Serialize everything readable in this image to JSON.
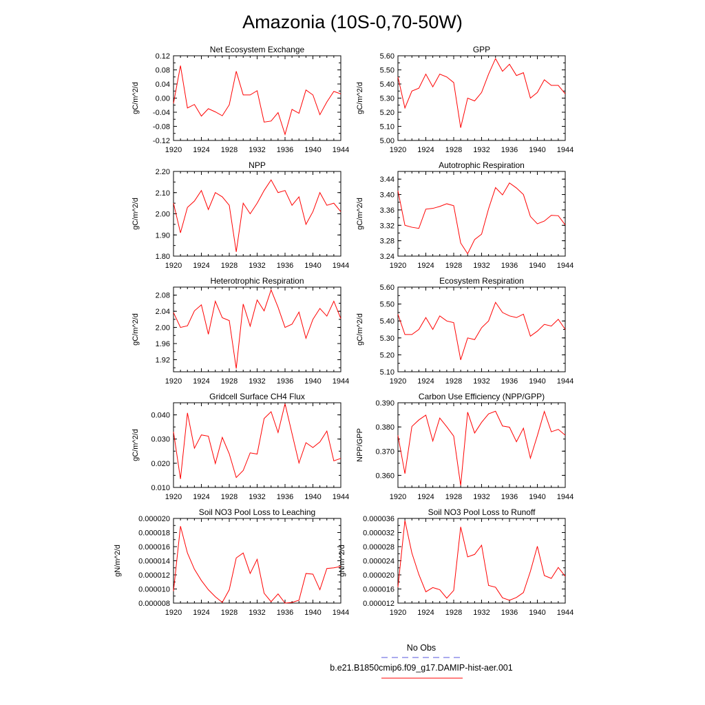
{
  "figure": {
    "title": "Amazonia (10S-0,70-50W)"
  },
  "legend": {
    "entries": [
      {
        "label": "No Obs",
        "color": "#5555dd",
        "style": "dashed"
      },
      {
        "label": "b.e21.B1850cmip6.f09_g17.DAMIP-hist-aer.001",
        "color": "#ff0000",
        "style": "solid"
      }
    ]
  },
  "chart_data": [
    {
      "type": "line",
      "title": "Net Ecosystem Exchange",
      "ylabel": "gC/m^2/d",
      "xlim": [
        1920,
        1944
      ],
      "ylim": [
        -0.12,
        0.12
      ],
      "x_ticks": [
        "1920",
        "1924",
        "1928",
        "1932",
        "1936",
        "1940",
        "1944"
      ],
      "y_ticks": [
        "-0.12",
        "-0.08",
        "-0.04",
        "0.00",
        "0.04",
        "0.08",
        "0.12"
      ],
      "series": [
        {
          "color": "#ff0000",
          "x": [
            1920,
            1921,
            1922,
            1923,
            1924,
            1925,
            1926,
            1927,
            1928,
            1929,
            1930,
            1931,
            1932,
            1933,
            1934,
            1935,
            1936,
            1937,
            1938,
            1939,
            1940,
            1941,
            1942,
            1943,
            1944
          ],
          "y": [
            -0.015,
            0.092,
            -0.028,
            -0.018,
            -0.051,
            -0.03,
            -0.039,
            -0.05,
            -0.019,
            0.076,
            0.009,
            0.009,
            0.021,
            -0.068,
            -0.065,
            -0.041,
            -0.103,
            -0.032,
            -0.043,
            0.023,
            0.009,
            -0.047,
            -0.011,
            0.019,
            0.012
          ]
        }
      ]
    },
    {
      "type": "line",
      "title": "GPP",
      "ylabel": "gC/m^2/d",
      "xlim": [
        1920,
        1944
      ],
      "ylim": [
        5.0,
        5.6
      ],
      "x_ticks": [
        "1920",
        "1924",
        "1928",
        "1932",
        "1936",
        "1940",
        "1944"
      ],
      "y_ticks": [
        "5.00",
        "5.10",
        "5.20",
        "5.30",
        "5.40",
        "5.50",
        "5.60"
      ],
      "series": [
        {
          "color": "#ff0000",
          "x": [
            1920,
            1921,
            1922,
            1923,
            1924,
            1925,
            1926,
            1927,
            1928,
            1929,
            1930,
            1931,
            1932,
            1933,
            1934,
            1935,
            1936,
            1937,
            1938,
            1939,
            1940,
            1941,
            1942,
            1943,
            1944
          ],
          "y": [
            5.45,
            5.23,
            5.35,
            5.37,
            5.47,
            5.38,
            5.47,
            5.45,
            5.41,
            5.09,
            5.3,
            5.28,
            5.34,
            5.47,
            5.58,
            5.49,
            5.54,
            5.46,
            5.48,
            5.3,
            5.34,
            5.43,
            5.39,
            5.39,
            5.33
          ]
        }
      ]
    },
    {
      "type": "line",
      "title": "NPP",
      "ylabel": "gC/m^2/d",
      "xlim": [
        1920,
        1944
      ],
      "ylim": [
        1.8,
        2.2
      ],
      "x_ticks": [
        "1920",
        "1924",
        "1928",
        "1932",
        "1936",
        "1940",
        "1944"
      ],
      "y_ticks": [
        "1.80",
        "1.90",
        "2.00",
        "2.10",
        "2.20"
      ],
      "series": [
        {
          "color": "#ff0000",
          "x": [
            1920,
            1921,
            1922,
            1923,
            1924,
            1925,
            1926,
            1927,
            1928,
            1929,
            1930,
            1931,
            1932,
            1933,
            1934,
            1935,
            1936,
            1937,
            1938,
            1939,
            1940,
            1941,
            1942,
            1943,
            1944
          ],
          "y": [
            2.05,
            1.91,
            2.03,
            2.06,
            2.11,
            2.02,
            2.1,
            2.08,
            2.04,
            1.82,
            2.05,
            2.0,
            2.05,
            2.11,
            2.16,
            2.1,
            2.11,
            2.04,
            2.08,
            1.95,
            2.01,
            2.1,
            2.04,
            2.05,
            2.01
          ]
        }
      ]
    },
    {
      "type": "line",
      "title": "Autotrophic Respiration",
      "ylabel": "gC/m^2/d",
      "xlim": [
        1920,
        1944
      ],
      "ylim": [
        3.24,
        3.46
      ],
      "x_ticks": [
        "1920",
        "1924",
        "1928",
        "1932",
        "1936",
        "1940",
        "1944"
      ],
      "y_ticks": [
        "3.24",
        "3.28",
        "3.32",
        "3.36",
        "3.40",
        "3.44"
      ],
      "series": [
        {
          "color": "#ff0000",
          "x": [
            1920,
            1921,
            1922,
            1923,
            1924,
            1925,
            1926,
            1927,
            1928,
            1929,
            1930,
            1931,
            1932,
            1933,
            1934,
            1935,
            1936,
            1937,
            1938,
            1939,
            1940,
            1941,
            1942,
            1943,
            1944
          ],
          "y": [
            3.41,
            3.32,
            3.315,
            3.312,
            3.362,
            3.364,
            3.369,
            3.376,
            3.371,
            3.274,
            3.246,
            3.283,
            3.297,
            3.363,
            3.418,
            3.399,
            3.43,
            3.417,
            3.4,
            3.343,
            3.324,
            3.331,
            3.346,
            3.345,
            3.321
          ]
        }
      ]
    },
    {
      "type": "line",
      "title": "Heterotrophic Respiration",
      "ylabel": "gC/m^2/d",
      "xlim": [
        1920,
        1944
      ],
      "ylim": [
        1.89,
        2.1
      ],
      "x_ticks": [
        "1920",
        "1924",
        "1928",
        "1932",
        "1936",
        "1940",
        "1944"
      ],
      "y_ticks": [
        "1.92",
        "1.96",
        "2.00",
        "2.04",
        "2.08"
      ],
      "series": [
        {
          "color": "#ff0000",
          "x": [
            1920,
            1921,
            1922,
            1923,
            1924,
            1925,
            1926,
            1927,
            1928,
            1929,
            1930,
            1931,
            1932,
            1933,
            1934,
            1935,
            1936,
            1937,
            1938,
            1939,
            1940,
            1941,
            1942,
            1943,
            1944
          ],
          "y": [
            2.037,
            2.0,
            2.004,
            2.041,
            2.056,
            1.983,
            2.065,
            2.024,
            2.017,
            1.898,
            2.058,
            2.003,
            2.068,
            2.041,
            2.093,
            2.05,
            2.0,
            2.008,
            2.038,
            1.973,
            2.02,
            2.047,
            2.028,
            2.065,
            2.022
          ]
        }
      ]
    },
    {
      "type": "line",
      "title": "Ecosystem Respiration",
      "ylabel": "gC/m^2/d",
      "xlim": [
        1920,
        1944
      ],
      "ylim": [
        5.1,
        5.6
      ],
      "x_ticks": [
        "1920",
        "1924",
        "1928",
        "1932",
        "1936",
        "1940",
        "1944"
      ],
      "y_ticks": [
        "5.10",
        "5.20",
        "5.30",
        "5.40",
        "5.50",
        "5.60"
      ],
      "series": [
        {
          "color": "#ff0000",
          "x": [
            1920,
            1921,
            1922,
            1923,
            1924,
            1925,
            1926,
            1927,
            1928,
            1929,
            1930,
            1931,
            1932,
            1933,
            1934,
            1935,
            1936,
            1937,
            1938,
            1939,
            1940,
            1941,
            1942,
            1943,
            1944
          ],
          "y": [
            5.44,
            5.32,
            5.32,
            5.35,
            5.42,
            5.35,
            5.43,
            5.4,
            5.39,
            5.17,
            5.3,
            5.29,
            5.36,
            5.4,
            5.51,
            5.45,
            5.43,
            5.42,
            5.44,
            5.31,
            5.34,
            5.38,
            5.37,
            5.41,
            5.35
          ]
        }
      ]
    },
    {
      "type": "line",
      "title": "Gridcell Surface CH4 Flux",
      "ylabel": "gC/m^2/d",
      "xlim": [
        1920,
        1944
      ],
      "ylim": [
        0.01,
        0.045
      ],
      "x_ticks": [
        "1920",
        "1924",
        "1928",
        "1932",
        "1936",
        "1940",
        "1944"
      ],
      "y_ticks": [
        "0.010",
        "0.020",
        "0.030",
        "0.040"
      ],
      "series": [
        {
          "color": "#ff0000",
          "x": [
            1920,
            1921,
            1922,
            1923,
            1924,
            1925,
            1926,
            1927,
            1928,
            1929,
            1930,
            1931,
            1932,
            1933,
            1934,
            1935,
            1936,
            1937,
            1938,
            1939,
            1940,
            1941,
            1942,
            1943,
            1944
          ],
          "y": [
            0.033,
            0.0135,
            0.0408,
            0.0262,
            0.0317,
            0.0312,
            0.0199,
            0.0307,
            0.0239,
            0.0141,
            0.017,
            0.0243,
            0.0238,
            0.0385,
            0.0413,
            0.0327,
            0.0446,
            0.0323,
            0.0201,
            0.0285,
            0.0265,
            0.0288,
            0.0333,
            0.021,
            0.022
          ]
        }
      ]
    },
    {
      "type": "line",
      "title": "Carbon Use Efficiency (NPP/GPP)",
      "ylabel": "NPP/GPP",
      "xlim": [
        1920,
        1944
      ],
      "ylim": [
        0.355,
        0.39
      ],
      "x_ticks": [
        "1920",
        "1924",
        "1928",
        "1932",
        "1936",
        "1940",
        "1944"
      ],
      "y_ticks": [
        "0.360",
        "0.370",
        "0.380",
        "0.390"
      ],
      "series": [
        {
          "color": "#ff0000",
          "x": [
            1920,
            1921,
            1922,
            1923,
            1924,
            1925,
            1926,
            1927,
            1928,
            1929,
            1930,
            1931,
            1932,
            1933,
            1934,
            1935,
            1936,
            1937,
            1938,
            1939,
            1940,
            1941,
            1942,
            1943,
            1944
          ],
          "y": [
            0.3765,
            0.3607,
            0.3802,
            0.3829,
            0.3849,
            0.3742,
            0.3837,
            0.3801,
            0.3762,
            0.3558,
            0.3861,
            0.3775,
            0.3819,
            0.3854,
            0.3865,
            0.3804,
            0.3799,
            0.3739,
            0.3795,
            0.3671,
            0.3764,
            0.3864,
            0.378,
            0.379,
            0.3766
          ]
        }
      ]
    },
    {
      "type": "line",
      "title": "Soil NO3 Pool Loss to Leaching",
      "ylabel": "gN/m^2/d",
      "xlim": [
        1920,
        1944
      ],
      "ylim": [
        8e-06,
        2e-05
      ],
      "x_ticks": [
        "1920",
        "1924",
        "1928",
        "1932",
        "1936",
        "1940",
        "1944"
      ],
      "y_ticks": [
        "0.000008",
        "0.000010",
        "0.000012",
        "0.000014",
        "0.000016",
        "0.000018",
        "0.000020"
      ],
      "series": [
        {
          "color": "#ff0000",
          "x": [
            1920,
            1921,
            1922,
            1923,
            1924,
            1925,
            1926,
            1927,
            1928,
            1929,
            1930,
            1931,
            1932,
            1933,
            1934,
            1935,
            1936,
            1937,
            1938,
            1939,
            1940,
            1941,
            1942,
            1943,
            1944
          ],
          "y": [
            9.7e-06,
            1.89e-05,
            1.51e-05,
            1.28e-05,
            1.12e-05,
            9.9e-06,
            8.9e-06,
            8.1e-06,
            9.9e-06,
            1.44e-05,
            1.51e-05,
            1.22e-05,
            1.42e-05,
            9.4e-06,
            8.2e-06,
            9.3e-06,
            8e-06,
            8.1e-06,
            8.4e-06,
            1.22e-05,
            1.21e-05,
            9.9e-06,
            1.29e-05,
            1.3e-05,
            1.32e-05
          ]
        }
      ]
    },
    {
      "type": "line",
      "title": "Soil NO3 Pool Loss to Runoff",
      "ylabel": "gN/m^2/d",
      "xlim": [
        1920,
        1944
      ],
      "ylim": [
        1.2e-05,
        3.6e-05
      ],
      "x_ticks": [
        "1920",
        "1924",
        "1928",
        "1932",
        "1936",
        "1940",
        "1944"
      ],
      "y_ticks": [
        "0.000012",
        "0.000016",
        "0.000020",
        "0.000024",
        "0.000028",
        "0.000032",
        "0.000036"
      ],
      "series": [
        {
          "color": "#ff0000",
          "x": [
            1920,
            1921,
            1922,
            1923,
            1924,
            1925,
            1926,
            1927,
            1928,
            1929,
            1930,
            1931,
            1932,
            1933,
            1934,
            1935,
            1936,
            1937,
            1938,
            1939,
            1940,
            1941,
            1942,
            1943,
            1944
          ],
          "y": [
            1.65e-05,
            3.54e-05,
            2.62e-05,
            2.01e-05,
            1.52e-05,
            1.64e-05,
            1.58e-05,
            1.34e-05,
            1.56e-05,
            3.36e-05,
            2.51e-05,
            2.58e-05,
            2.84e-05,
            1.7e-05,
            1.65e-05,
            1.35e-05,
            1.28e-05,
            1.36e-05,
            1.5e-05,
            2.1e-05,
            2.81e-05,
            1.98e-05,
            1.9e-05,
            2.21e-05,
            1.96e-05
          ]
        }
      ]
    }
  ]
}
